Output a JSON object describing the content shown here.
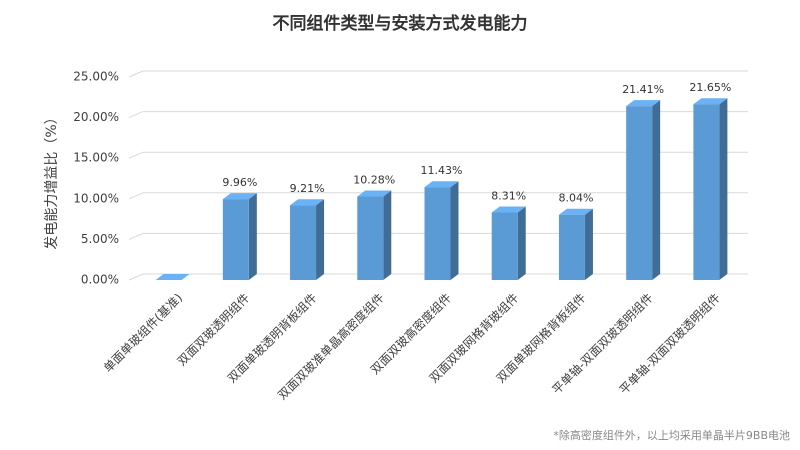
{
  "chart_data": {
    "type": "bar3d",
    "title": "不同组件类型与安装方式发电能力",
    "y_label": "发电能力增益比（%）",
    "footnote": "*除高密度组件外，以上均采用单晶半片9BB电池",
    "categories": [
      "单面单玻组件(基准)",
      "双面双玻透明组件",
      "双面单玻透明背板组件",
      "双面双玻准单晶高密度组件",
      "双面双玻高密度组件",
      "双面双玻网格背玻组件",
      "双面单玻网格背板组件",
      "平单轴-双面双玻透明组件",
      "平单轴-双面双玻透明组件"
    ],
    "values": [
      0,
      9.96,
      9.21,
      10.28,
      11.43,
      8.31,
      8.04,
      21.41,
      21.65
    ],
    "value_labels": [
      null,
      "9.96%",
      "9.21%",
      "10.28%",
      "11.43%",
      "8.31%",
      "8.04%",
      "21.41%",
      "21.65%"
    ],
    "color": "#5b9bd5",
    "ylim": [
      0,
      25
    ],
    "yticks": [
      {
        "value": 0,
        "label": "0.00%"
      },
      {
        "value": 5,
        "label": "5.00%"
      },
      {
        "value": 10,
        "label": "10.00%"
      },
      {
        "value": 15,
        "label": "15.00%"
      },
      {
        "value": 20,
        "label": "20.00%"
      },
      {
        "value": 25,
        "label": "25.00%"
      }
    ],
    "grid": true
  }
}
